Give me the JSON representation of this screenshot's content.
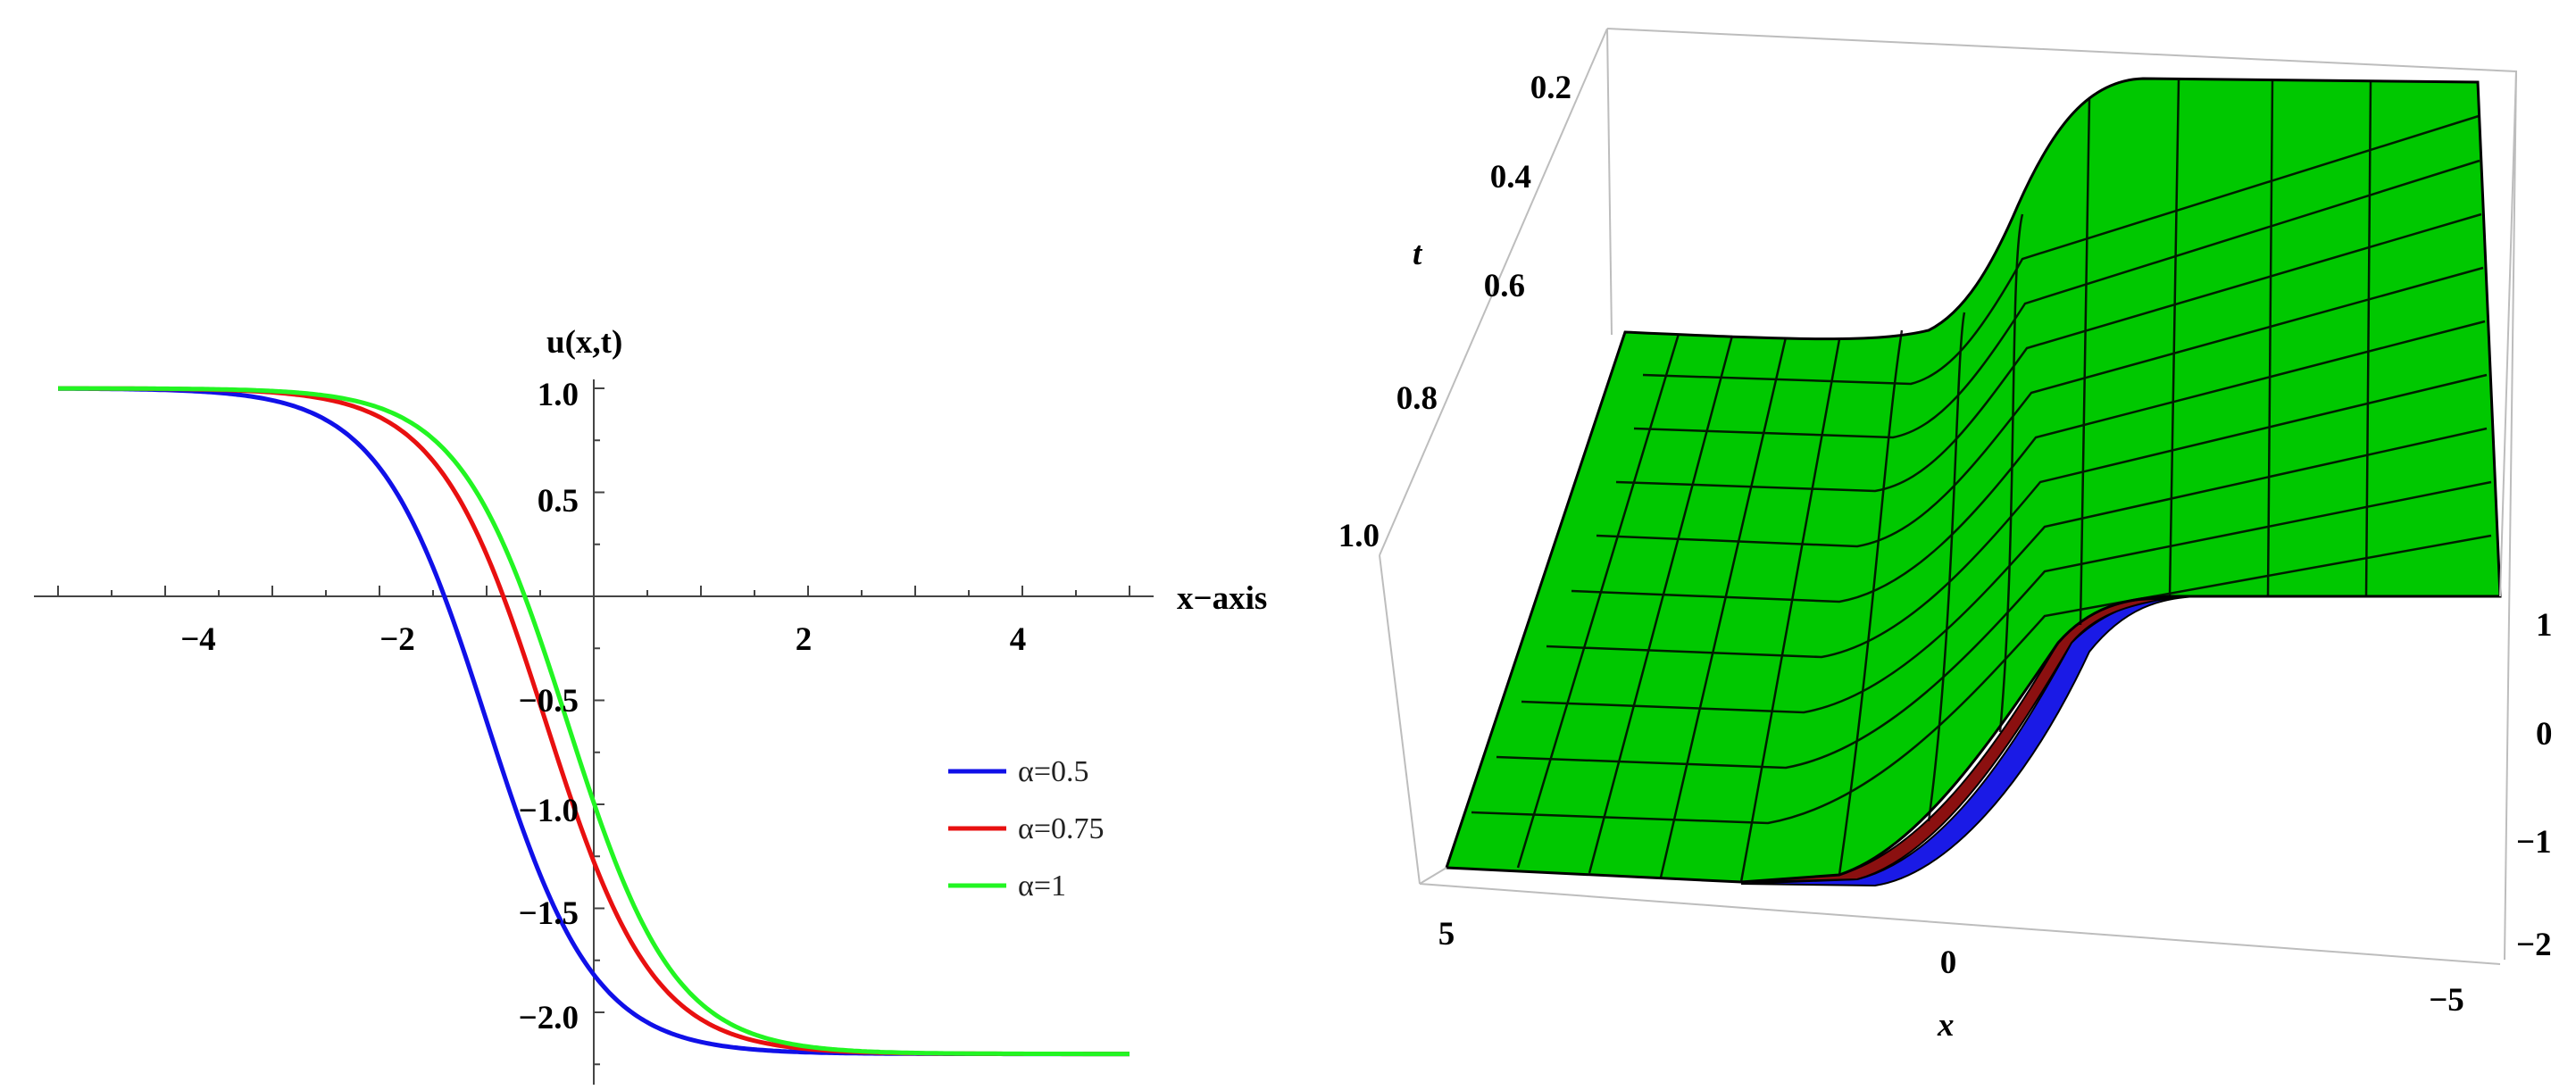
{
  "chart_data": [
    {
      "type": "line",
      "ylabel": "u(x,t)",
      "xlabel": "x−axis",
      "xlim": [
        -5,
        5
      ],
      "ylim": [
        -2.2,
        1.0
      ],
      "xticks": [
        "−4",
        "−2",
        "2",
        "4"
      ],
      "yticks": [
        "1.0",
        "0.5",
        "−0.5",
        "−1.0",
        "−1.5",
        "−2.0"
      ],
      "legend_position": "right",
      "series": [
        {
          "name": "α=0.5",
          "color": "#1010e8",
          "shift": 1.0
        },
        {
          "name": "α=0.75",
          "color": "#e81010",
          "shift": 0.45
        },
        {
          "name": "α=1",
          "color": "#22f522",
          "shift": 0.25
        }
      ],
      "curve": {
        "formula": "u = -0.6 - 1.6 * tanh(x + shift)",
        "x_range": [
          -5,
          5
        ]
      }
    },
    {
      "type": "surface",
      "xlabel": "x",
      "ylabel": "t",
      "x_ticks": [
        "5",
        "0",
        "−5"
      ],
      "t_ticks": [
        "0.2",
        "0.4",
        "0.6",
        "0.8",
        "1.0"
      ],
      "z_ticks": [
        "1",
        "0",
        "−1",
        "−2"
      ],
      "x_range": [
        -5,
        5
      ],
      "t_range": [
        0.2,
        1.0
      ],
      "z_range": [
        -2.2,
        1.0
      ],
      "surface_colors": [
        "#1010e8",
        "#8b1010",
        "#00cc00"
      ]
    }
  ]
}
